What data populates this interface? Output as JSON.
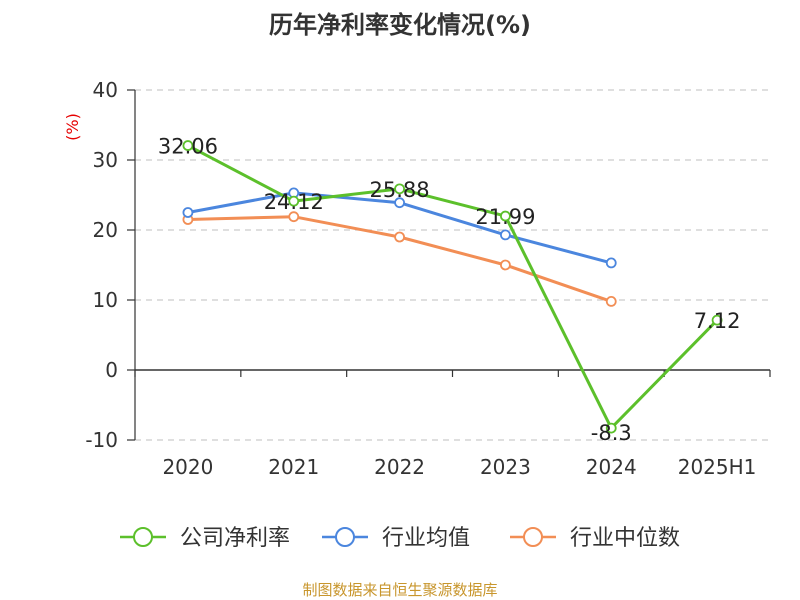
{
  "chart_data": {
    "type": "line",
    "title": "历年净利率变化情况(%)",
    "unit_label": "(%)",
    "categories": [
      "2020",
      "2021",
      "2022",
      "2023",
      "2024",
      "2025H1"
    ],
    "ylim": [
      -10,
      40
    ],
    "yticks": [
      "40",
      "30",
      "20",
      "10",
      "0",
      "-10"
    ],
    "grid": true,
    "legend_position": "bottom",
    "series": [
      {
        "name": "公司净利率",
        "color": "#5cc02b",
        "values": [
          32.06,
          24.12,
          25.88,
          21.99,
          -8.3,
          7.12
        ],
        "labels": [
          "32.06",
          "24.12",
          "25.88",
          "21.99",
          "-8.3",
          "7.12"
        ]
      },
      {
        "name": "行业均值",
        "color": "#4b86de",
        "values": [
          22.5,
          25.3,
          23.9,
          19.3,
          15.3,
          null
        ]
      },
      {
        "name": "行业中位数",
        "color": "#f28e55",
        "values": [
          21.5,
          21.9,
          19.0,
          15.0,
          9.8,
          null
        ]
      }
    ],
    "source": "制图数据来自恒生聚源数据库"
  }
}
